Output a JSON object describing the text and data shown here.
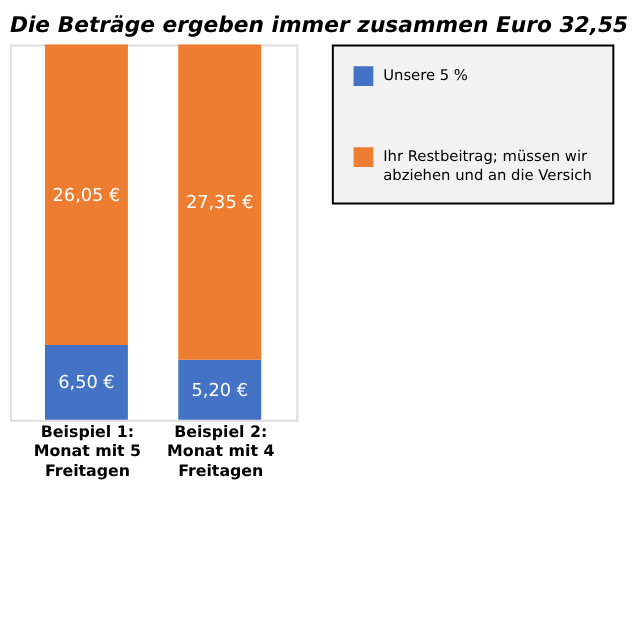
{
  "chart_data": {
    "type": "bar",
    "stacked": true,
    "title": "Die Beträge ergeben immer zusammen Euro 32,55",
    "categories": [
      "Beispiel 1: Monat mit 5 Freitagen",
      "Beispiel 2: Monat mit 4 Freitagen"
    ],
    "series": [
      {
        "name": "Unsere 5 %",
        "color": "#4472c4",
        "values": [
          6.5,
          5.2
        ],
        "value_labels": [
          "6,50 €",
          "5,20 €"
        ]
      },
      {
        "name": "Ihr Restbeitrag; müssen wir abziehen und an die Versich",
        "color": "#ed7d31",
        "values": [
          26.05,
          27.35
        ],
        "value_labels": [
          "26,05 €",
          "27,35 €"
        ]
      }
    ],
    "legend": "right",
    "tick_labels": "x",
    "grid": false
  }
}
